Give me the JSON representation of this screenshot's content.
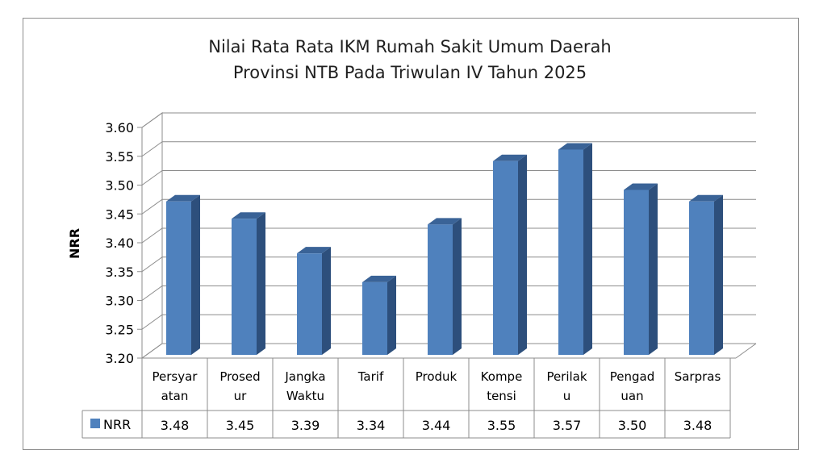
{
  "chart_data": {
    "type": "bar",
    "title_lines": [
      "Nilai Rata Rata IKM Rumah Sakit Umum Daerah",
      "Provinsi NTB Pada Triwulan IV Tahun 2025"
    ],
    "ylabel": "NRR",
    "ylim": [
      3.2,
      3.6
    ],
    "yticks": [
      "3.60",
      "3.55",
      "3.50",
      "3.45",
      "3.40",
      "3.35",
      "3.30",
      "3.25",
      "3.20"
    ],
    "categories": [
      [
        "Persyar",
        "atan"
      ],
      [
        "Prosed",
        "ur"
      ],
      [
        "Jangka",
        "Waktu"
      ],
      [
        "Tarif"
      ],
      [
        "Produk"
      ],
      [
        "Kompe",
        "tensi"
      ],
      [
        "Perilak",
        "u"
      ],
      [
        "Pengad",
        "uan"
      ],
      [
        "Sarpras"
      ]
    ],
    "series": [
      {
        "name": "NRR",
        "values": [
          3.48,
          3.45,
          3.39,
          3.34,
          3.44,
          3.55,
          3.57,
          3.5,
          3.48
        ],
        "value_labels": [
          "3.48",
          "3.45",
          "3.39",
          "3.34",
          "3.44",
          "3.55",
          "3.57",
          "3.50",
          "3.48"
        ],
        "color": "#4f81bd"
      }
    ],
    "grid": true,
    "legend": "data-table"
  }
}
